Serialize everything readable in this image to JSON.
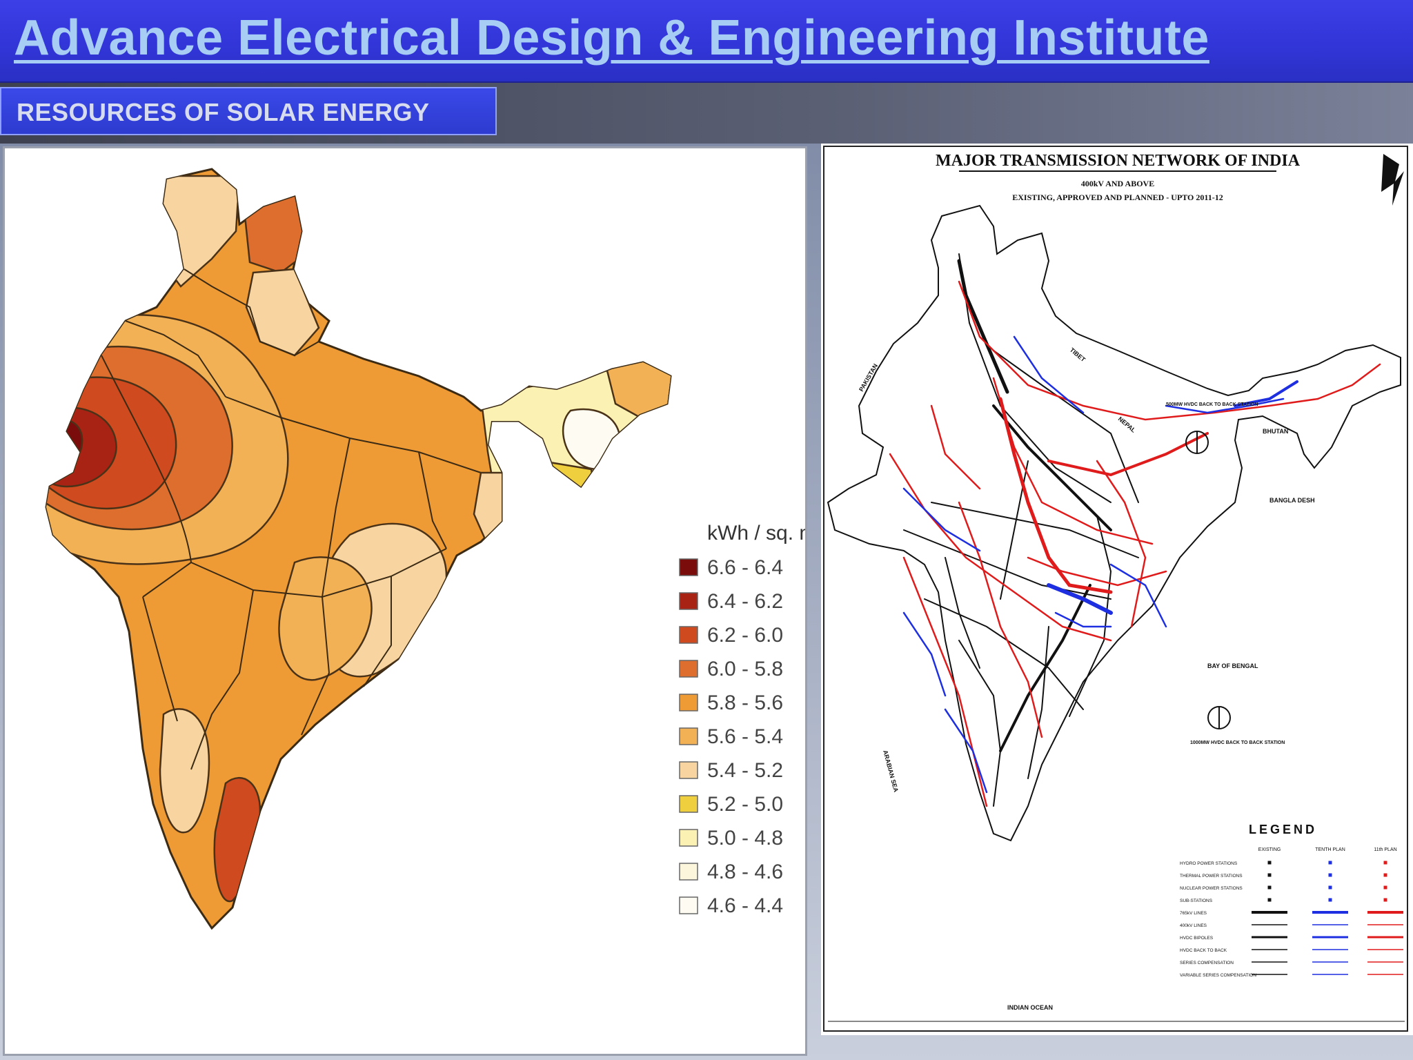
{
  "header": {
    "title": "Advance Electrical Design & Engineering Institute",
    "subtitle": "RESOURCES OF SOLAR ENERGY"
  },
  "solar_map": {
    "unit_label": "kWh / sq. m",
    "legend": [
      {
        "label": "6.6 - 6.4",
        "color": "#7a0c0c"
      },
      {
        "label": "6.4 - 6.2",
        "color": "#a82314"
      },
      {
        "label": "6.2 - 6.0",
        "color": "#cf4a1e"
      },
      {
        "label": "6.0 - 5.8",
        "color": "#de6e2d"
      },
      {
        "label": "5.8 - 5.6",
        "color": "#ee9a35"
      },
      {
        "label": "5.6 - 5.4",
        "color": "#f3b155"
      },
      {
        "label": "5.4 - 5.2",
        "color": "#f8d5a0"
      },
      {
        "label": "5.2 - 5.0",
        "color": "#f0cf3e"
      },
      {
        "label": "5.0 - 4.8",
        "color": "#fbf1b3"
      },
      {
        "label": "4.8 - 4.6",
        "color": "#fbf6dc"
      },
      {
        "label": "4.6 - 4.4",
        "color": "#fdfbf2"
      }
    ]
  },
  "transmission_map": {
    "title": "MAJOR TRANSMISSION NETWORK OF INDIA",
    "line1": "400kV AND ABOVE",
    "line2": "EXISTING, APPROVED AND PLANNED - UPTO 2011-12",
    "neighbors": [
      "PAKISTAN",
      "TIBET",
      "NEPAL",
      "BHUTAN",
      "BANGLA DESH",
      "ARABIAN SEA",
      "BAY OF BENGAL",
      "INDIAN OCEAN"
    ],
    "legend_title": "LEGEND",
    "legend_columns": [
      "EXISTING",
      "TENTH PLAN",
      "11th PLAN"
    ],
    "legend_rows": [
      "HYDRO POWER STATIONS",
      "THERMAL POWER STATIONS",
      "NUCLEAR POWER STATIONS",
      "SUB-STATIONS",
      "765kV LINES",
      "400kV LINES",
      "HVDC BIPOLES",
      "HVDC BACK TO BACK",
      "SERIES COMPENSATION",
      "VARIABLE SERIES COMPENSATION"
    ],
    "annotations": [
      "500MW HVDC BACK TO BACK STATION",
      "1000MW HVDC BACK TO BACK STATION"
    ],
    "colors": {
      "existing": "#111111",
      "tenth_plan": "#1d2fe0",
      "eleventh_plan": "#e01b1b"
    }
  }
}
